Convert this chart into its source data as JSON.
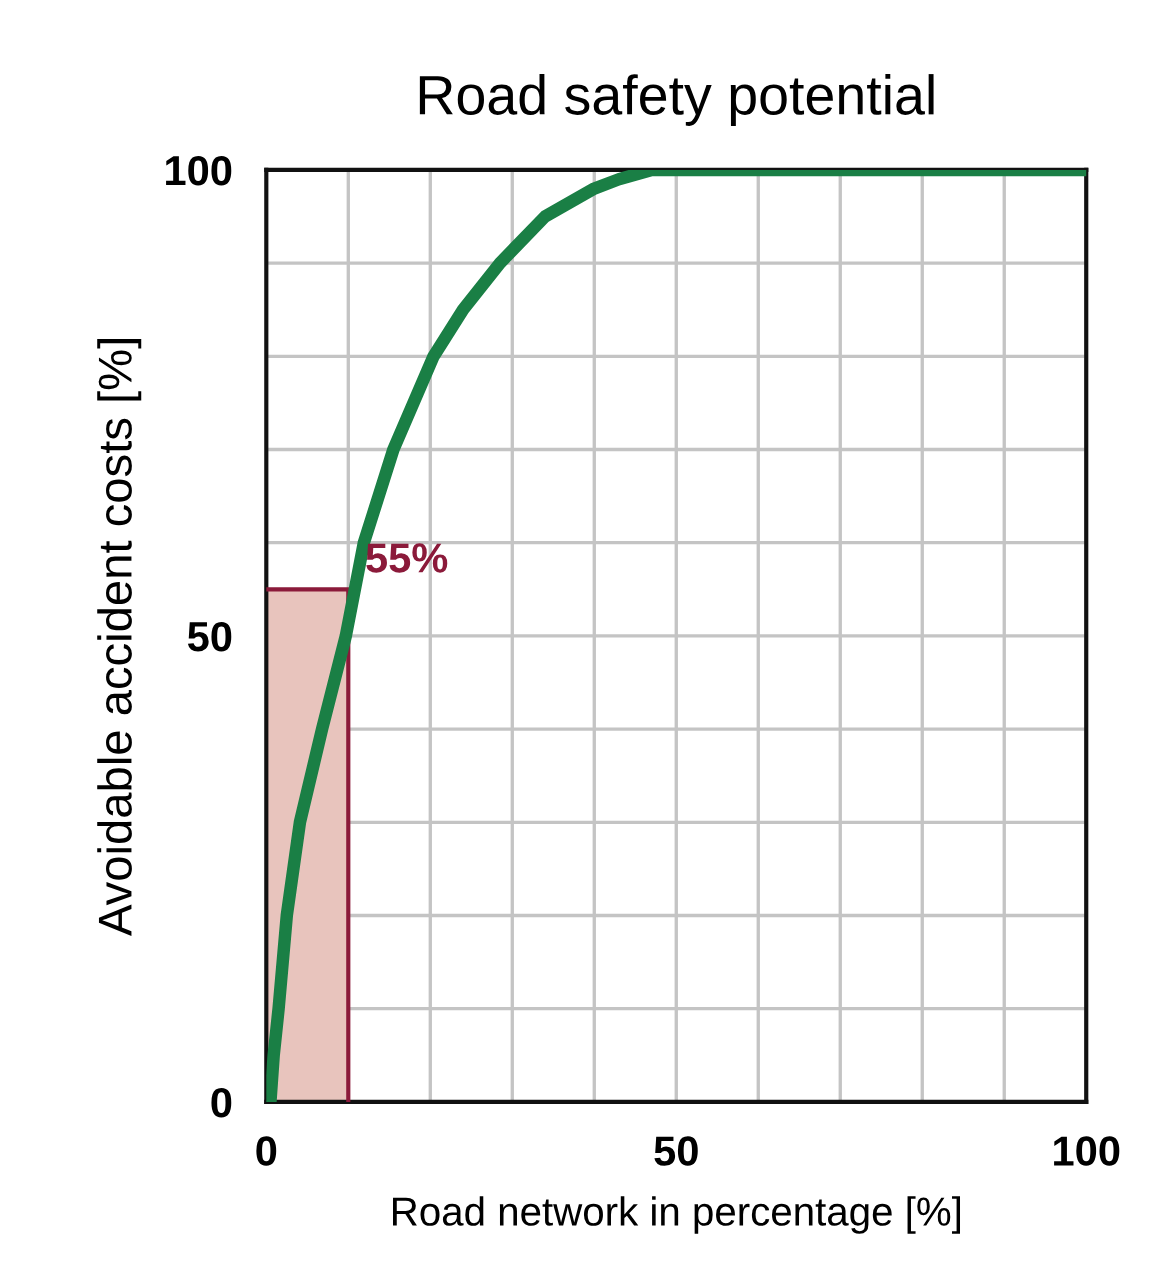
{
  "chart_data": {
    "type": "line",
    "title": "Road safety potential",
    "xlabel": "Road network in percentage [%]",
    "ylabel": "Avoidable accident costs [%]",
    "x": [
      0.5,
      0.9,
      1.5,
      2.5,
      4.1,
      6.8,
      9.7,
      11.9,
      15.5,
      20.4,
      24,
      28.5,
      34,
      40,
      43,
      47,
      100
    ],
    "series": [
      {
        "type": "area",
        "color": "#e8c4bd",
        "x": [
          0,
          10
        ],
        "values": [
          55,
          55
        ]
      },
      {
        "color": "#1a7f45",
        "values": [
          0,
          5,
          10,
          20,
          30,
          40,
          50,
          60,
          70,
          80,
          85,
          90,
          95,
          98,
          99,
          100,
          100
        ]
      }
    ],
    "annotations": [
      {
        "text": "55%",
        "x": 10,
        "y": 55
      }
    ],
    "xlim": [
      0,
      100
    ],
    "ylim": [
      0,
      100
    ],
    "xticks": [
      0,
      {
        "value": 10,
        "label": null
      },
      {
        "value": 20,
        "label": null
      },
      {
        "value": 30,
        "label": null
      },
      {
        "value": 40,
        "label": null
      },
      50,
      {
        "value": 60,
        "label": null
      },
      {
        "value": 70,
        "label": null
      },
      {
        "value": 80,
        "label": null
      },
      {
        "value": 90,
        "label": null
      },
      100
    ],
    "yticks": [
      0,
      {
        "value": 10,
        "label": null
      },
      {
        "value": 20,
        "label": null
      },
      {
        "value": 30,
        "label": null
      },
      {
        "value": 40,
        "label": null
      },
      50,
      {
        "value": 60,
        "label": null
      },
      {
        "value": 70,
        "label": null
      },
      {
        "value": 80,
        "label": null
      },
      {
        "value": 90,
        "label": null
      },
      100
    ],
    "grid": true,
    "legend": false,
    "marker": "none",
    "line_style": "solid"
  }
}
